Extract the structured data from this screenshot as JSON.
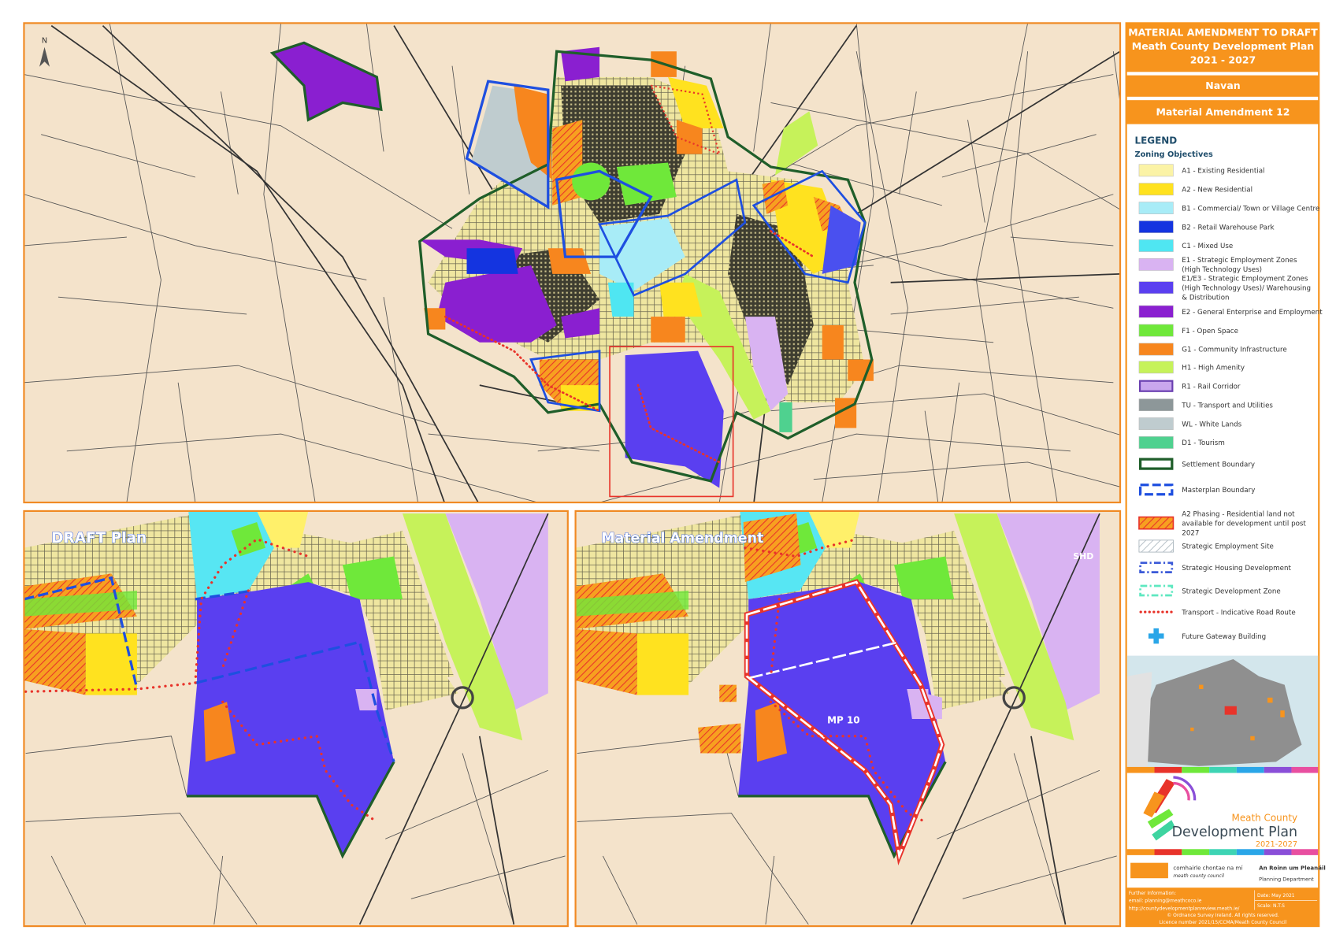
{
  "panel": {
    "title": [
      "MATERIAL AMENDMENT TO DRAFT",
      "Meath County Development Plan",
      "2021 - 2027"
    ],
    "town": "Navan",
    "amendment": "Material Amendment 12",
    "legend_title": "LEGEND",
    "legend_subtitle": "Zoning Objectives",
    "legend": [
      {
        "lines": [
          "A1 - Existing Residential"
        ],
        "color": "#fbf3a6",
        "kind": "fill"
      },
      {
        "lines": [
          "A2 - New Residential"
        ],
        "color": "#ffe21f",
        "kind": "fill"
      },
      {
        "lines": [
          "B1 - Commercial/ Town or Village Centre"
        ],
        "color": "#a8ecf7",
        "kind": "fill"
      },
      {
        "lines": [
          "B2 - Retail Warehouse Park"
        ],
        "color": "#1434e0",
        "kind": "fill"
      },
      {
        "lines": [
          "C1 - Mixed Use"
        ],
        "color": "#4fe6f2",
        "kind": "fill"
      },
      {
        "lines": [
          "E1 - Strategic Employment Zones",
          "(High Technology Uses)"
        ],
        "color": "#d9b3f2",
        "kind": "fill"
      },
      {
        "lines": [
          "E1/E3 - Strategic Employment Zones",
          "(High Technology Uses)/ Warehousing",
          "& Distribution"
        ],
        "color": "#5a3ff0",
        "kind": "fill"
      },
      {
        "lines": [
          "E2 - General Enterprise and Employment"
        ],
        "color": "#8a1fd0",
        "kind": "fill"
      },
      {
        "lines": [
          "F1 - Open Space"
        ],
        "color": "#6fe83a",
        "kind": "fill"
      },
      {
        "lines": [
          "G1 - Community Infrastructure"
        ],
        "color": "#f7861e",
        "kind": "fill"
      },
      {
        "lines": [
          "H1 - High Amenity"
        ],
        "color": "#c6f25a",
        "kind": "fill"
      },
      {
        "lines": [
          "R1 - Rail Corridor"
        ],
        "color": "#c9a6ee",
        "kind": "outline"
      },
      {
        "lines": [
          "TU - Transport and Utilities"
        ],
        "color": "#8d9799",
        "kind": "fill"
      },
      {
        "lines": [
          "WL - White Lands"
        ],
        "color": "#bfcccf",
        "kind": "fill"
      },
      {
        "lines": [
          "D1 - Tourism"
        ],
        "color": "#4fd18f",
        "kind": "fill"
      },
      {
        "lines": [
          "Settlement Boundary"
        ],
        "color": "#1f5e2a",
        "kind": "boundary"
      },
      {
        "lines": [
          "Masterplan Boundary"
        ],
        "color": "#1e4fe0",
        "kind": "dashed"
      },
      {
        "lines": [
          "A2 Phasing - Residential land not",
          "available for development until post",
          "2027"
        ],
        "color": "#e8332a",
        "kind": "hatch"
      },
      {
        "lines": [
          "Strategic Employment Site"
        ],
        "color": "#a8b4bc",
        "kind": "hatchgrey"
      },
      {
        "lines": [
          "Strategic Housing Development"
        ],
        "color": "#3b5ad8",
        "kind": "dashdot"
      },
      {
        "lines": [
          "Strategic Development Zone"
        ],
        "color": "#5ee8c0",
        "kind": "dashdot"
      },
      {
        "lines": [
          "Transport - Indicative Road Route"
        ],
        "color": "#e8332a",
        "kind": "dots"
      },
      {
        "lines": [
          "Future Gateway Building"
        ],
        "color": "#2aa6e8",
        "kind": "cross"
      }
    ]
  },
  "maps": {
    "north": "N",
    "draft_label": "DRAFT Plan",
    "amendment_label": "Material Amendment",
    "mp_label": "MP 10",
    "shd_label": "SHD"
  },
  "logo": {
    "line1": "Meath County",
    "line2": "Development Plan",
    "line3": "2021-2027"
  },
  "council": {
    "irish": "comhairle chontae na mí",
    "english": "meath county council",
    "dept_irish": "An Roinn um Pleanáil",
    "dept_english": "Planning Department"
  },
  "footer": {
    "info": [
      "Further Information:",
      "email: planning@meathcoco.ie",
      "http://countydevelopmentplanreview.meath.ie/"
    ],
    "date": "Date: May 2021",
    "scale": "Scale: N.T.S",
    "copyright": [
      "© Ordnance Survey Ireland. All rights reserved.",
      "Licence number 2021/15/CCMA/Meath County Council"
    ]
  }
}
